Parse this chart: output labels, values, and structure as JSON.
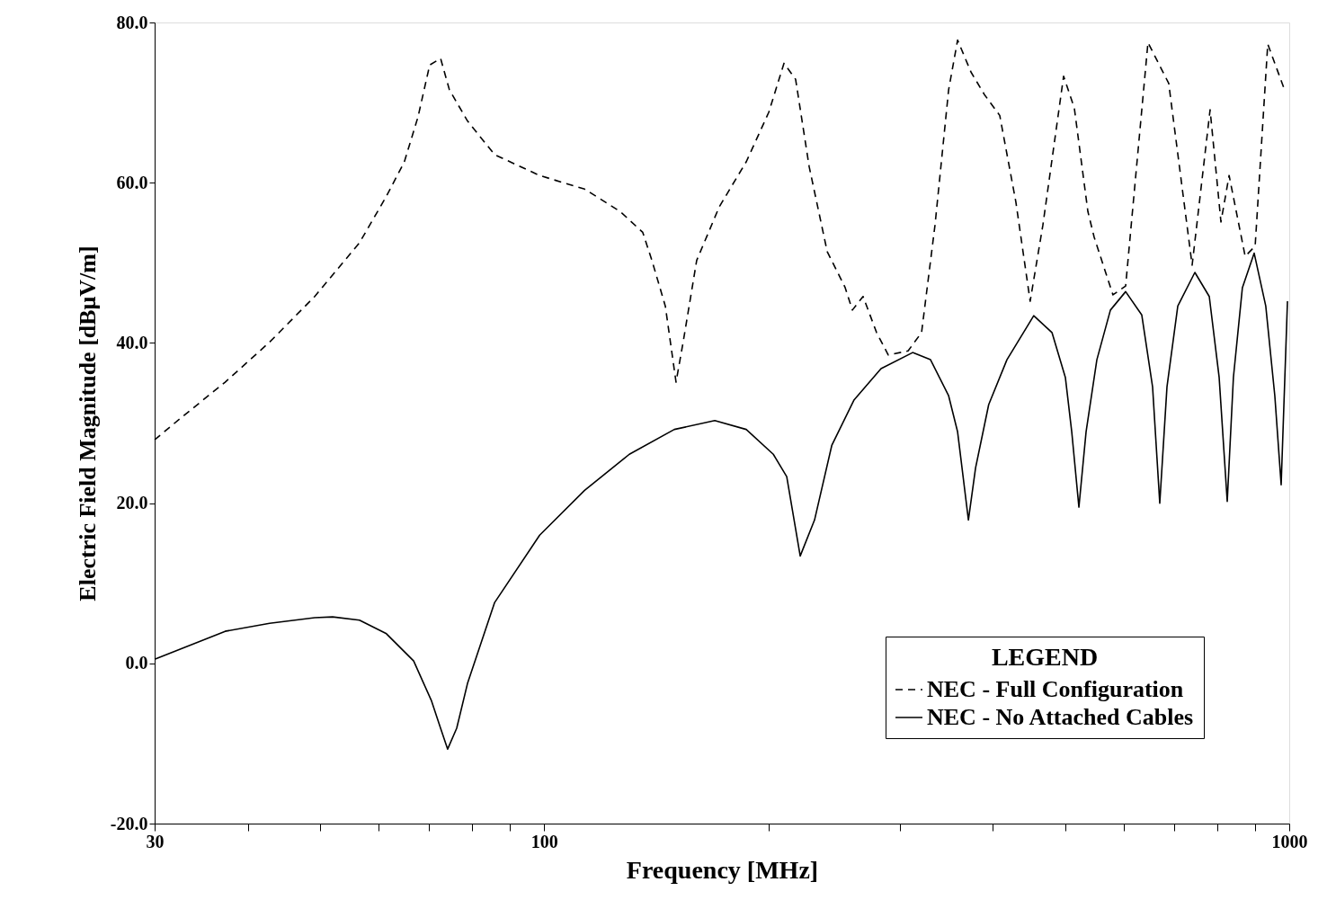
{
  "chart_data": {
    "type": "line",
    "xlabel": "Frequency [MHz]",
    "ylabel": "Electric Field Magnitude [dBμV/m]",
    "legend_title": "LEGEND",
    "legend": "bottom right",
    "log": "x",
    "grid": false,
    "xlim": [
      30,
      1000
    ],
    "xticks": [
      30,
      {
        "value": 40,
        "label": null
      },
      {
        "value": 50,
        "label": null
      },
      {
        "value": 60,
        "label": null
      },
      {
        "value": 70,
        "label": null
      },
      {
        "value": 80,
        "label": null
      },
      {
        "value": 90,
        "label": null
      },
      100,
      {
        "value": 200,
        "label": null
      },
      {
        "value": 300,
        "label": null
      },
      {
        "value": 400,
        "label": null
      },
      {
        "value": 500,
        "label": null
      },
      {
        "value": 600,
        "label": null
      },
      {
        "value": 700,
        "label": null
      },
      {
        "value": 800,
        "label": null
      },
      {
        "value": 900,
        "label": null
      },
      1000
    ],
    "ylim": [
      -20,
      80
    ],
    "yticks": [
      {
        "value": -20,
        "label": "-20.0"
      },
      {
        "value": 0,
        "label": "0.0"
      },
      {
        "value": 20,
        "label": "20.0"
      },
      {
        "value": 40,
        "label": "40.0"
      },
      {
        "value": 60,
        "label": "60.0"
      },
      {
        "value": 80,
        "label": "80.0"
      }
    ],
    "series": [
      {
        "name": "NEC - Full Configuration",
        "color": "#000000",
        "line_style": "dashed",
        "x": [
          30,
          32.4,
          37.3,
          42.8,
          49.2,
          56.5,
          61.4,
          64.9,
          67.7,
          70.2,
          72.6,
          74.6,
          78.9,
          85.8,
          98.6,
          113.3,
          126.5,
          135.6,
          139.5,
          145.4,
          150.3,
          153.7,
          160.2,
          171.8,
          186.7,
          200.2,
          209.8,
          217.5,
          226.8,
          239.8,
          253.5,
          259.2,
          267.9,
          279.3,
          289.6,
          307.9,
          321,
          334.6,
          349,
          358.8,
          374,
          389.8,
          408.7,
          429.6,
          449,
          467,
          497.9,
          514.7,
          536.7,
          547.2,
          579.9,
          603.1,
          646.2,
          689,
          740.7,
          783,
          809.7,
          830.4,
          872.7,
          900,
          935.7,
          986.4
        ],
        "values": [
          27.9,
          30.5,
          35.1,
          40.1,
          45.8,
          52.5,
          58.3,
          62.6,
          68.2,
          74.7,
          75.5,
          71.6,
          67.7,
          63.5,
          60.9,
          59.2,
          56.4,
          53.8,
          50.3,
          44.6,
          35.1,
          40.2,
          50.3,
          57,
          62.6,
          68.8,
          74.9,
          72.9,
          62,
          51.4,
          46.9,
          44.1,
          45.8,
          41.3,
          38.5,
          39,
          41.3,
          54.7,
          71.6,
          77.8,
          73.8,
          71,
          68.4,
          57.6,
          45.2,
          54.7,
          73.3,
          69.3,
          56.4,
          53.2,
          46,
          47.1,
          77.5,
          72.4,
          49.7,
          69.1,
          55.1,
          60.9,
          50.8,
          52.1,
          77.3,
          71.5
        ]
      },
      {
        "name": "NEC - No Attached Cables",
        "color": "#000000",
        "line_style": "solid",
        "x": [
          30,
          37.3,
          42.8,
          49.2,
          52,
          56.5,
          61.4,
          66.8,
          70.6,
          72.6,
          74.2,
          76.3,
          78.9,
          85.8,
          98.6,
          113.3,
          130.1,
          149.5,
          169.4,
          186.7,
          203,
          211.6,
          220.6,
          230.6,
          243.2,
          260.6,
          283.2,
          312.3,
          330,
          349,
          358.8,
          371,
          379.3,
          395,
          417.9,
          454,
          480.3,
          500.6,
          510.6,
          522,
          533.7,
          551.8,
          575.4,
          603.1,
          633.9,
          655.5,
          670.2,
          685.3,
          708.6,
          747,
          781,
          805.2,
          825.6,
          841.5,
          865.2,
          897.3,
          930,
          956.4,
          975.3,
          994.5
        ],
        "values": [
          0.5,
          4,
          5,
          5.7,
          5.8,
          5.4,
          3.7,
          0.3,
          -4.7,
          -8.1,
          -10.7,
          -8.1,
          -2.5,
          7.6,
          16,
          21.6,
          26.1,
          29.2,
          30.3,
          29.2,
          26.1,
          23.3,
          13.4,
          17.9,
          27.2,
          32.9,
          36.8,
          38.8,
          37.9,
          33.4,
          28.9,
          17.9,
          24.4,
          32.3,
          37.9,
          43.4,
          41.3,
          35.7,
          28.9,
          19.5,
          28.9,
          37.9,
          44.1,
          46.4,
          43.5,
          34.5,
          20,
          34.5,
          44.6,
          48.8,
          45.8,
          35.7,
          20.2,
          35.7,
          46.9,
          51.2,
          44.6,
          33.4,
          22.3,
          45.2
        ]
      }
    ]
  }
}
